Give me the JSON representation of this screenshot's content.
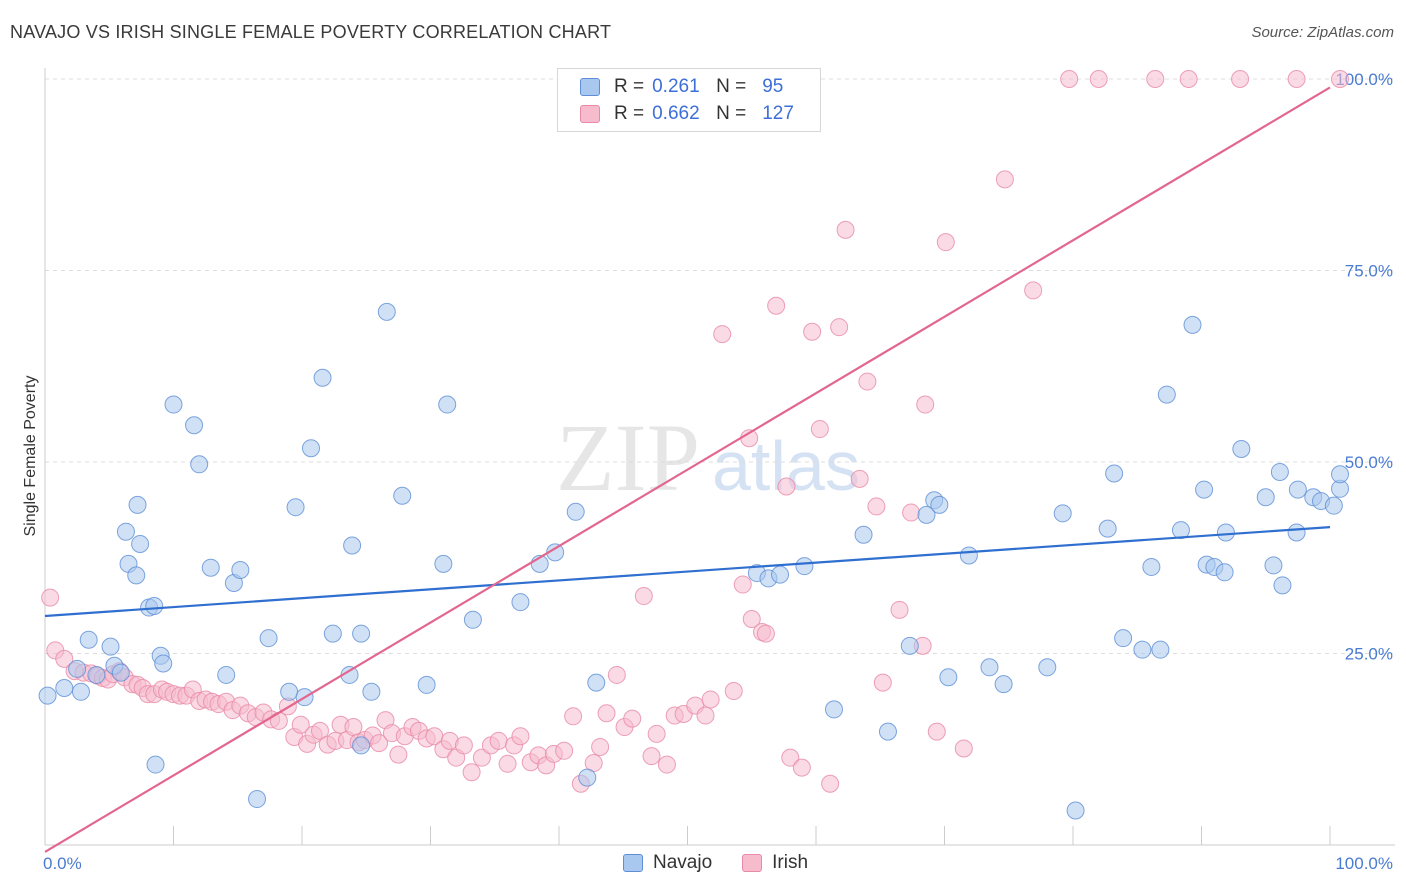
{
  "title": "NAVAJO VS IRISH SINGLE FEMALE POVERTY CORRELATION CHART",
  "source": "Source: ZipAtlas.com",
  "watermark": {
    "zip": "ZIP",
    "atlas": "atlas"
  },
  "legend": {
    "r_label": "R =",
    "n_label": "N =",
    "rows": [
      {
        "name": "Navajo",
        "r": "0.261",
        "n": "95"
      },
      {
        "name": "Irish",
        "r": "0.662",
        "n": "127"
      }
    ]
  },
  "colors": {
    "navajo_fill": "#a9c8ef",
    "navajo_stroke": "#5e8fd6",
    "navajo_line": "#2f6fd0",
    "irish_fill": "#f6bccd",
    "irish_stroke": "#e889a8",
    "irish_line": "#e2668f",
    "tick_text": "#4a7bd1",
    "grid": "#dcdcdc"
  },
  "chart_data": {
    "type": "scatter",
    "xlabel": "",
    "ylabel": "Single Female Poverty",
    "xlim": [
      0,
      100
    ],
    "ylim": [
      0,
      100
    ],
    "x_tick_labels": [
      "0.0%",
      "100.0%"
    ],
    "y_tick_labels": [
      "25.0%",
      "50.0%",
      "75.0%",
      "100.0%"
    ],
    "y_ticks": [
      25,
      50,
      75,
      100
    ],
    "grid": "dashed horizontal",
    "legend_placement": "bottom-center",
    "series": [
      {
        "name": "Navajo",
        "trend": {
          "x": [
            0,
            100
          ],
          "y": [
            29.9,
            41.5
          ]
        },
        "points": [
          [
            0.2,
            19.5
          ],
          [
            1.5,
            20.5
          ],
          [
            2.5,
            23
          ],
          [
            2.8,
            20
          ],
          [
            3.4,
            26.8
          ],
          [
            4.0,
            22.2
          ],
          [
            5.1,
            25.9
          ],
          [
            5.4,
            23.4
          ],
          [
            5.9,
            22.5
          ],
          [
            8.1,
            31
          ],
          [
            8.5,
            31.2
          ],
          [
            6.3,
            40.9
          ],
          [
            6.5,
            36.7
          ],
          [
            7.1,
            35.2
          ],
          [
            7.2,
            44.4
          ],
          [
            7.4,
            39.3
          ],
          [
            8.6,
            10.5
          ],
          [
            9.0,
            24.7
          ],
          [
            9.2,
            23.7
          ],
          [
            10.0,
            57.5
          ],
          [
            11.6,
            54.8
          ],
          [
            12.0,
            49.7
          ],
          [
            12.9,
            36.2
          ],
          [
            14.1,
            22.2
          ],
          [
            14.7,
            34.2
          ],
          [
            15.2,
            35.9
          ],
          [
            16.5,
            6.0
          ],
          [
            17.4,
            27.0
          ],
          [
            19.5,
            44.1
          ],
          [
            20.7,
            51.8
          ],
          [
            21.6,
            61.0
          ],
          [
            19.0,
            20.0
          ],
          [
            22.4,
            27.6
          ],
          [
            20.2,
            19.3
          ],
          [
            23.7,
            22.2
          ],
          [
            23.9,
            39.1
          ],
          [
            24.6,
            27.6
          ],
          [
            24.6,
            13.0
          ],
          [
            25.4,
            20.0
          ],
          [
            26.6,
            69.6
          ],
          [
            27.8,
            45.6
          ],
          [
            29.7,
            20.9
          ],
          [
            31.3,
            57.5
          ],
          [
            31.0,
            36.7
          ],
          [
            33.3,
            29.4
          ],
          [
            37.0,
            31.7
          ],
          [
            38.5,
            36.7
          ],
          [
            39.7,
            38.2
          ],
          [
            41.3,
            43.5
          ],
          [
            42.2,
            8.8
          ],
          [
            42.9,
            21.2
          ],
          [
            55.4,
            35.5
          ],
          [
            56.3,
            34.8
          ],
          [
            57.2,
            35.3
          ],
          [
            59.1,
            36.4
          ],
          [
            61.4,
            17.7
          ],
          [
            63.7,
            40.5
          ],
          [
            65.6,
            14.8
          ],
          [
            67.3,
            26.0
          ],
          [
            68.6,
            43.1
          ],
          [
            69.2,
            45.0
          ],
          [
            69.6,
            44.4
          ],
          [
            70.3,
            21.9
          ],
          [
            71.9,
            37.8
          ],
          [
            73.5,
            23.2
          ],
          [
            74.6,
            21.0
          ],
          [
            78.0,
            23.2
          ],
          [
            79.2,
            43.3
          ],
          [
            80.2,
            4.5
          ],
          [
            82.7,
            41.3
          ],
          [
            83.2,
            48.5
          ],
          [
            83.9,
            27.0
          ],
          [
            85.4,
            25.5
          ],
          [
            86.1,
            36.3
          ],
          [
            86.8,
            25.5
          ],
          [
            87.3,
            58.8
          ],
          [
            88.4,
            41.1
          ],
          [
            89.3,
            67.9
          ],
          [
            90.2,
            46.4
          ],
          [
            90.4,
            36.6
          ],
          [
            91.0,
            36.3
          ],
          [
            91.8,
            35.6
          ],
          [
            91.9,
            40.8
          ],
          [
            93.1,
            51.7
          ],
          [
            95.0,
            45.4
          ],
          [
            95.6,
            36.5
          ],
          [
            96.1,
            48.7
          ],
          [
            96.3,
            33.9
          ],
          [
            97.4,
            40.8
          ],
          [
            97.5,
            46.4
          ],
          [
            98.7,
            45.4
          ],
          [
            99.3,
            44.9
          ],
          [
            100.3,
            44.3
          ],
          [
            101.2,
            46.5
          ],
          [
            102.3,
            48.4
          ]
        ]
      },
      {
        "name": "Irish",
        "trend": {
          "x": [
            0,
            100
          ],
          "y": [
            -0.9,
            98.9
          ]
        },
        "points": [
          [
            0.4,
            32.3
          ],
          [
            0.8,
            25.4
          ],
          [
            1.5,
            24.3
          ],
          [
            2.3,
            22.7
          ],
          [
            3.0,
            22.5
          ],
          [
            3.6,
            22.4
          ],
          [
            4.1,
            22.1
          ],
          [
            4.5,
            21.8
          ],
          [
            4.9,
            21.6
          ],
          [
            5.3,
            22.3
          ],
          [
            5.8,
            22.7
          ],
          [
            6.2,
            21.9
          ],
          [
            6.8,
            21.0
          ],
          [
            7.2,
            20.9
          ],
          [
            7.6,
            20.5
          ],
          [
            8.0,
            19.7
          ],
          [
            8.5,
            19.7
          ],
          [
            9.1,
            20.3
          ],
          [
            9.5,
            20.0
          ],
          [
            10.0,
            19.7
          ],
          [
            10.5,
            19.5
          ],
          [
            11.0,
            19.5
          ],
          [
            11.5,
            20.3
          ],
          [
            12.0,
            18.8
          ],
          [
            12.5,
            19.0
          ],
          [
            13.0,
            18.7
          ],
          [
            13.5,
            18.4
          ],
          [
            14.1,
            18.7
          ],
          [
            14.6,
            17.6
          ],
          [
            15.2,
            18.2
          ],
          [
            15.8,
            17.2
          ],
          [
            16.4,
            16.7
          ],
          [
            17.0,
            17.3
          ],
          [
            17.6,
            16.4
          ],
          [
            18.2,
            16.2
          ],
          [
            18.9,
            18.1
          ],
          [
            19.4,
            14.1
          ],
          [
            19.9,
            15.7
          ],
          [
            20.4,
            13.2
          ],
          [
            20.9,
            14.4
          ],
          [
            21.4,
            14.9
          ],
          [
            22.0,
            13.1
          ],
          [
            22.6,
            13.6
          ],
          [
            23.0,
            15.7
          ],
          [
            23.5,
            13.7
          ],
          [
            24.0,
            15.4
          ],
          [
            24.4,
            13.4
          ],
          [
            24.9,
            13.7
          ],
          [
            25.5,
            14.3
          ],
          [
            26.0,
            13.3
          ],
          [
            26.5,
            16.3
          ],
          [
            27.0,
            14.6
          ],
          [
            27.5,
            11.8
          ],
          [
            28.0,
            14.2
          ],
          [
            28.6,
            15.4
          ],
          [
            29.1,
            14.9
          ],
          [
            29.7,
            13.9
          ],
          [
            30.3,
            14.2
          ],
          [
            31.0,
            12.5
          ],
          [
            31.5,
            13.6
          ],
          [
            32.0,
            11.4
          ],
          [
            32.6,
            13.0
          ],
          [
            33.2,
            9.5
          ],
          [
            34.0,
            11.4
          ],
          [
            34.7,
            13.0
          ],
          [
            35.3,
            13.6
          ],
          [
            36.0,
            10.6
          ],
          [
            36.5,
            13.0
          ],
          [
            37.0,
            14.2
          ],
          [
            37.8,
            10.8
          ],
          [
            38.4,
            11.7
          ],
          [
            39.0,
            10.4
          ],
          [
            39.6,
            11.9
          ],
          [
            40.4,
            12.3
          ],
          [
            41.1,
            16.8
          ],
          [
            41.7,
            8.0
          ],
          [
            42.7,
            10.7
          ],
          [
            43.2,
            12.8
          ],
          [
            43.7,
            17.2
          ],
          [
            44.5,
            22.2
          ],
          [
            45.1,
            15.4
          ],
          [
            45.7,
            16.5
          ],
          [
            46.6,
            32.5
          ],
          [
            47.2,
            11.6
          ],
          [
            47.6,
            14.5
          ],
          [
            48.4,
            10.5
          ],
          [
            49.0,
            16.9
          ],
          [
            49.7,
            17.1
          ],
          [
            50.6,
            18.2
          ],
          [
            51.4,
            16.9
          ],
          [
            51.8,
            19.0
          ],
          [
            52.7,
            66.7
          ],
          [
            53.6,
            20.1
          ],
          [
            54.3,
            34.0
          ],
          [
            54.8,
            53.1
          ],
          [
            55.0,
            29.5
          ],
          [
            55.8,
            27.8
          ],
          [
            56.1,
            27.6
          ],
          [
            56.9,
            70.4
          ],
          [
            57.7,
            46.8
          ],
          [
            58.0,
            11.4
          ],
          [
            58.9,
            10.1
          ],
          [
            59.7,
            67.0
          ],
          [
            60.3,
            54.3
          ],
          [
            61.1,
            8.0
          ],
          [
            61.8,
            67.6
          ],
          [
            62.3,
            80.3
          ],
          [
            63.4,
            47.8
          ],
          [
            64.0,
            60.5
          ],
          [
            64.7,
            44.2
          ],
          [
            65.2,
            21.2
          ],
          [
            66.5,
            30.7
          ],
          [
            67.4,
            43.4
          ],
          [
            68.3,
            26.0
          ],
          [
            68.5,
            57.5
          ],
          [
            69.4,
            14.8
          ],
          [
            70.1,
            78.7
          ],
          [
            71.5,
            12.6
          ],
          [
            74.7,
            86.9
          ],
          [
            76.9,
            72.4
          ],
          [
            79.7,
            100
          ],
          [
            82.0,
            100
          ],
          [
            86.4,
            100
          ],
          [
            89.0,
            100
          ],
          [
            93.0,
            100
          ],
          [
            97.4,
            100
          ],
          [
            101.5,
            100
          ]
        ]
      }
    ]
  },
  "bottom_legend": [
    "Navajo",
    "Irish"
  ]
}
